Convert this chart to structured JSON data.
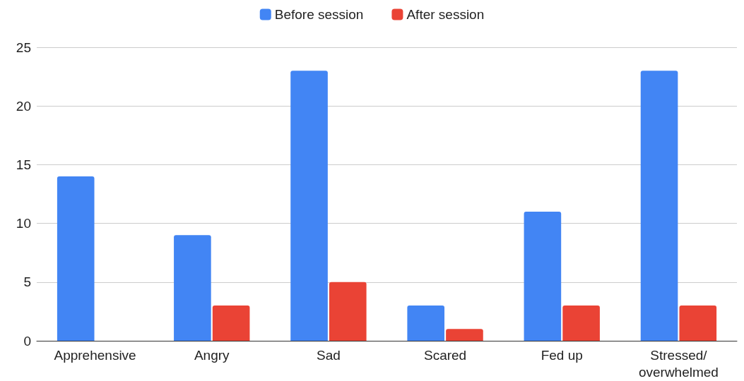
{
  "chart_data": {
    "type": "bar",
    "categories": [
      "Apprehensive",
      "Angry",
      "Sad",
      "Scared",
      "Fed up",
      "Stressed/overwhelmed"
    ],
    "series": [
      {
        "name": "Before session",
        "color": "#4285f4",
        "values": [
          14,
          9,
          23,
          3,
          11,
          23
        ]
      },
      {
        "name": "After session",
        "color": "#ea4335",
        "values": [
          0,
          3,
          5,
          1,
          3,
          3
        ]
      }
    ],
    "ylim": [
      0,
      25
    ],
    "yticks": [
      0,
      5,
      10,
      15,
      20,
      25
    ],
    "grid": "y",
    "legend": "top"
  }
}
